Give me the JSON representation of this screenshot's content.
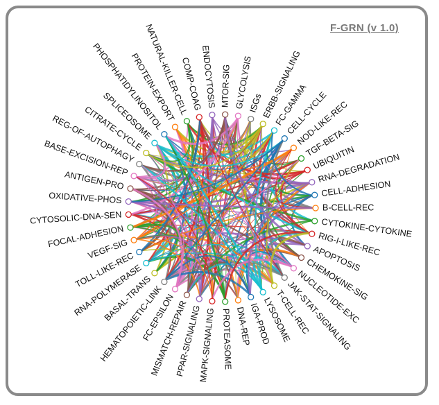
{
  "title": "F-GRN (v 1.0)",
  "pathways": [
    "CELL-ADHESION",
    "B-CELL-REC",
    "CYTOKINE-CYTOKINE",
    "RIG-I-LIKE-REC",
    "APOPTOSIS",
    "CHEMOKINE-SIG",
    "NUCLEOTIDE-EXC",
    "JAK-STAT-SIGNALING",
    "T-CELL-REC",
    "LYSOSOME",
    "IGA-PROD",
    "DNA-REP",
    "PROTEASOME",
    "MAPK-SIGNALING",
    "PPAR-SIGNALING",
    "MISMATCH-REPAIR",
    "FC-EPSILON",
    "HEMATOPOIETIC-LINK",
    "BASAL-TRANS",
    "RNA-POLYMERASE",
    "TOLL-LIKE-REC",
    "VEGF-SIG",
    "FOCAL-ADHESION",
    "CYTOSOLIC-DNA-SEN",
    "OXIDATIVE-PHOS",
    "ANTIGEN-PRO",
    "BASE-EXCISION-REP",
    "REG-OF-AUTOPHAGY",
    "CITRATE-CYCLE",
    "SPLICEOSOME",
    "PHOSPHATIDYLINOSITOL",
    "PROTEIN-EXPORT",
    "NATURAL-KILLER-CELL",
    "COMP-COAG",
    "ENDOCYTOSIS",
    "MTOR-SIG",
    "GLYCOLYSIS",
    "ISGs",
    "ERBB-SIGNALING",
    "FC-GAMMA",
    "CELL-CYCLE",
    "NOD-LIKE-REC",
    "TGF-BETA-SIG",
    "UBIQUITIN",
    "RNA-DEGRADATION"
  ],
  "palette": [
    "#1f77b4",
    "#ff7f0e",
    "#2ca02c",
    "#d62728",
    "#9467bd",
    "#8c564b",
    "#e377c2",
    "#7f7f7f",
    "#bcbd22",
    "#17becf"
  ]
}
